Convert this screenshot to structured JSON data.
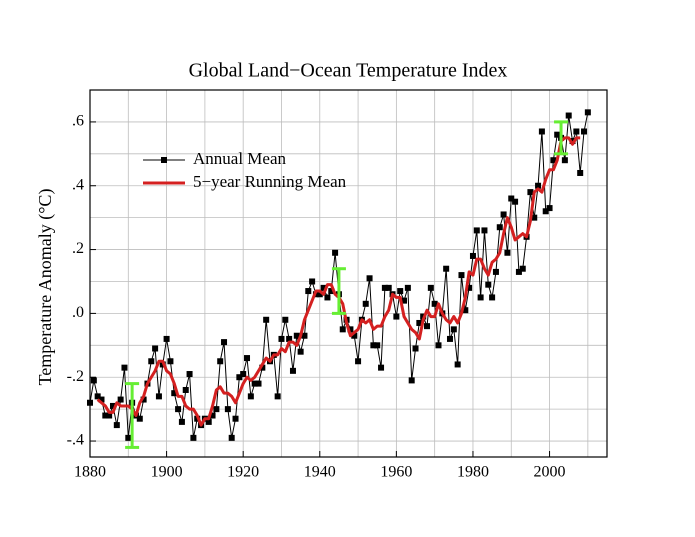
{
  "chart_data": {
    "type": "line",
    "title": "Global Land−Ocean Temperature Index",
    "ylabel": "Temperature Anomaly (°C)",
    "xlim": [
      1880,
      2015
    ],
    "ylim": [
      -0.45,
      0.7
    ],
    "xticks": [
      1880,
      1900,
      1920,
      1940,
      1960,
      1980,
      2000
    ],
    "yticks": [
      {
        "value": -0.4,
        "label": "-.4"
      },
      {
        "value": -0.2,
        "label": "-.2"
      },
      {
        "value": 0,
        "label": ".0"
      },
      {
        "value": 0.2,
        "label": ".2"
      },
      {
        "value": 0.4,
        "label": ".4"
      },
      {
        "value": 0.6,
        "label": ".6"
      }
    ],
    "xgrid": [
      1880,
      1890,
      1900,
      1910,
      1920,
      1930,
      1940,
      1950,
      1960,
      1970,
      1980,
      1990,
      2000,
      2010
    ],
    "ygrid": [
      -0.4,
      -0.3,
      -0.2,
      -0.1,
      0,
      0.1,
      0.2,
      0.3,
      0.4,
      0.5,
      0.6
    ],
    "grid": true,
    "legend": "upper left",
    "series": [
      {
        "name": "Annual Mean",
        "color": "#000000",
        "markers": true,
        "x": [
          1880,
          1881,
          1882,
          1883,
          1884,
          1885,
          1886,
          1887,
          1888,
          1889,
          1890,
          1891,
          1892,
          1893,
          1894,
          1895,
          1896,
          1897,
          1898,
          1899,
          1900,
          1901,
          1902,
          1903,
          1904,
          1905,
          1906,
          1907,
          1908,
          1909,
          1910,
          1911,
          1912,
          1913,
          1914,
          1915,
          1916,
          1917,
          1918,
          1919,
          1920,
          1921,
          1922,
          1923,
          1924,
          1925,
          1926,
          1927,
          1928,
          1929,
          1930,
          1931,
          1932,
          1933,
          1934,
          1935,
          1936,
          1937,
          1938,
          1939,
          1940,
          1941,
          1942,
          1943,
          1944,
          1945,
          1946,
          1947,
          1948,
          1949,
          1950,
          1951,
          1952,
          1953,
          1954,
          1955,
          1956,
          1957,
          1958,
          1959,
          1960,
          1961,
          1962,
          1963,
          1964,
          1965,
          1966,
          1967,
          1968,
          1969,
          1970,
          1971,
          1972,
          1973,
          1974,
          1975,
          1976,
          1977,
          1978,
          1979,
          1980,
          1981,
          1982,
          1983,
          1984,
          1985,
          1986,
          1987,
          1988,
          1989,
          1990,
          1991,
          1992,
          1993,
          1994,
          1995,
          1996,
          1997,
          1998,
          1999,
          2000,
          2001,
          2002,
          2003,
          2004,
          2005,
          2006,
          2007,
          2008,
          2009,
          2010
        ],
        "values": [
          -0.28,
          -0.21,
          -0.26,
          -0.27,
          -0.32,
          -0.32,
          -0.29,
          -0.35,
          -0.27,
          -0.17,
          -0.39,
          -0.28,
          -0.32,
          -0.33,
          -0.27,
          -0.22,
          -0.15,
          -0.11,
          -0.26,
          -0.16,
          -0.08,
          -0.15,
          -0.25,
          -0.3,
          -0.34,
          -0.24,
          -0.19,
          -0.39,
          -0.33,
          -0.35,
          -0.33,
          -0.34,
          -0.32,
          -0.3,
          -0.15,
          -0.09,
          -0.3,
          -0.39,
          -0.33,
          -0.2,
          -0.19,
          -0.14,
          -0.26,
          -0.22,
          -0.22,
          -0.17,
          -0.02,
          -0.15,
          -0.13,
          -0.26,
          -0.08,
          -0.02,
          -0.08,
          -0.18,
          -0.07,
          -0.12,
          -0.07,
          0.07,
          0.1,
          0.06,
          0.06,
          0.08,
          0.05,
          0.07,
          0.19,
          0.06,
          -0.05,
          -0.02,
          -0.05,
          -0.07,
          -0.15,
          -0.02,
          0.03,
          0.11,
          -0.1,
          -0.1,
          -0.17,
          0.08,
          0.08,
          0.06,
          -0.01,
          0.07,
          0.04,
          0.08,
          -0.21,
          -0.11,
          -0.03,
          -0.01,
          -0.04,
          0.08,
          0.03,
          -0.1,
          0.0,
          0.14,
          -0.08,
          -0.05,
          -0.16,
          0.12,
          0.01,
          0.08,
          0.18,
          0.26,
          0.05,
          0.26,
          0.09,
          0.05,
          0.13,
          0.27,
          0.31,
          0.19,
          0.36,
          0.35,
          0.13,
          0.14,
          0.24,
          0.38,
          0.3,
          0.4,
          0.57,
          0.32,
          0.33,
          0.48,
          0.56,
          0.55,
          0.48,
          0.62,
          0.54,
          0.57,
          0.44,
          0.57,
          0.63
        ]
      },
      {
        "name": "5−year Running Mean",
        "color": "#d42020",
        "markers": false,
        "x": [
          1882,
          1883,
          1884,
          1885,
          1886,
          1887,
          1888,
          1889,
          1890,
          1891,
          1892,
          1893,
          1894,
          1895,
          1896,
          1897,
          1898,
          1899,
          1900,
          1901,
          1902,
          1903,
          1904,
          1905,
          1906,
          1907,
          1908,
          1909,
          1910,
          1911,
          1912,
          1913,
          1914,
          1915,
          1916,
          1917,
          1918,
          1919,
          1920,
          1921,
          1922,
          1923,
          1924,
          1925,
          1926,
          1927,
          1928,
          1929,
          1930,
          1931,
          1932,
          1933,
          1934,
          1935,
          1936,
          1937,
          1938,
          1939,
          1940,
          1941,
          1942,
          1943,
          1944,
          1945,
          1946,
          1947,
          1948,
          1949,
          1950,
          1951,
          1952,
          1953,
          1954,
          1955,
          1956,
          1957,
          1958,
          1959,
          1960,
          1961,
          1962,
          1963,
          1964,
          1965,
          1966,
          1967,
          1968,
          1969,
          1970,
          1971,
          1972,
          1973,
          1974,
          1975,
          1976,
          1977,
          1978,
          1979,
          1980,
          1981,
          1982,
          1983,
          1984,
          1985,
          1986,
          1987,
          1988,
          1989,
          1990,
          1991,
          1992,
          1993,
          1994,
          1995,
          1996,
          1997,
          1998,
          1999,
          2000,
          2001,
          2002,
          2003,
          2004,
          2005,
          2006,
          2007,
          2008
        ],
        "values": [
          -0.27,
          -0.28,
          -0.29,
          -0.31,
          -0.31,
          -0.28,
          -0.29,
          -0.29,
          -0.29,
          -0.3,
          -0.32,
          -0.28,
          -0.26,
          -0.22,
          -0.2,
          -0.18,
          -0.15,
          -0.15,
          -0.18,
          -0.19,
          -0.22,
          -0.26,
          -0.26,
          -0.29,
          -0.3,
          -0.3,
          -0.32,
          -0.35,
          -0.33,
          -0.33,
          -0.29,
          -0.24,
          -0.23,
          -0.25,
          -0.25,
          -0.26,
          -0.28,
          -0.25,
          -0.22,
          -0.2,
          -0.21,
          -0.2,
          -0.18,
          -0.16,
          -0.14,
          -0.15,
          -0.13,
          -0.13,
          -0.11,
          -0.12,
          -0.09,
          -0.09,
          -0.1,
          -0.07,
          -0.02,
          0.01,
          0.04,
          0.07,
          0.07,
          0.06,
          0.09,
          0.09,
          0.06,
          0.05,
          0.03,
          -0.03,
          -0.07,
          -0.06,
          -0.05,
          -0.02,
          -0.03,
          -0.02,
          -0.05,
          -0.04,
          -0.04,
          -0.01,
          0.01,
          0.06,
          0.05,
          0.05,
          -0.01,
          -0.03,
          -0.05,
          -0.06,
          -0.08,
          -0.02,
          0.01,
          -0.01,
          -0.01,
          0.03,
          0.0,
          -0.02,
          -0.03,
          -0.01,
          -0.03,
          0.0,
          0.05,
          0.13,
          0.12,
          0.17,
          0.17,
          0.14,
          0.12,
          0.16,
          0.17,
          0.19,
          0.25,
          0.3,
          0.27,
          0.23,
          0.24,
          0.25,
          0.24,
          0.29,
          0.38,
          0.39,
          0.38,
          0.42,
          0.45,
          0.45,
          0.48,
          0.54,
          0.55,
          0.55,
          0.53,
          0.55,
          0.55
        ]
      }
    ],
    "error_bars": {
      "color": "#66ee33",
      "x": [
        1891,
        1945,
        2003
      ],
      "values": [
        -0.32,
        0.07,
        0.55
      ],
      "errors": [
        0.1,
        0.07,
        0.05
      ]
    }
  }
}
